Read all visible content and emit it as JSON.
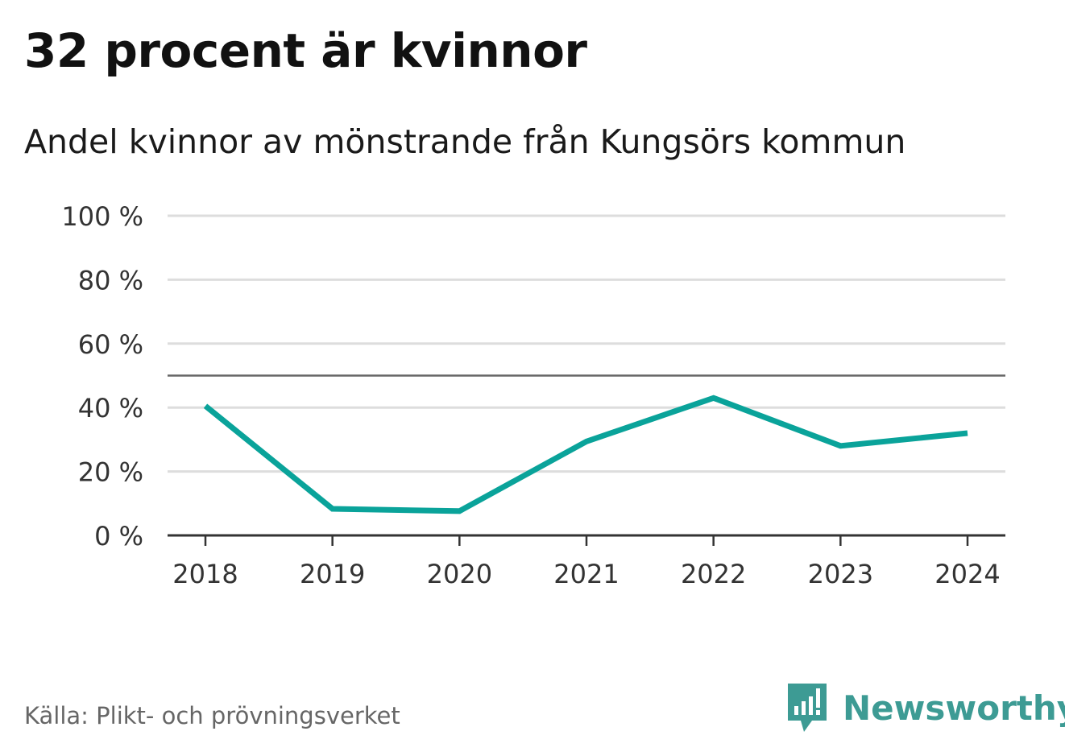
{
  "header": {
    "title": "32 procent är kvinnor",
    "subtitle": "Andel kvinnor av mönstrande från Kungsörs kommun"
  },
  "footer": {
    "source": "Källa: Plikt- och prövningsverket",
    "brand": "Newsworthy"
  },
  "colors": {
    "line": "#0aa39a",
    "brand": "#3d9b94",
    "grid": "#dddddd",
    "axis": "#333333",
    "reference": "#666666"
  },
  "chart_data": {
    "type": "line",
    "title": "32 procent är kvinnor",
    "subtitle": "Andel kvinnor av mönstrande från Kungsörs kommun",
    "xlabel": "",
    "ylabel": "",
    "x": [
      "2018",
      "2019",
      "2020",
      "2021",
      "2022",
      "2023",
      "2024"
    ],
    "series": [
      {
        "name": "Andel kvinnor",
        "values": [
          40.5,
          8.3,
          7.6,
          29.4,
          43.0,
          28.0,
          32.0
        ]
      }
    ],
    "ylim": [
      0,
      100
    ],
    "yticks": [
      0,
      20,
      40,
      60,
      80,
      100
    ],
    "ytick_labels": [
      "0 %",
      "20 %",
      "40 %",
      "60 %",
      "80 %",
      "100 %"
    ],
    "reference_line": 50,
    "grid": true,
    "legend": "none"
  }
}
